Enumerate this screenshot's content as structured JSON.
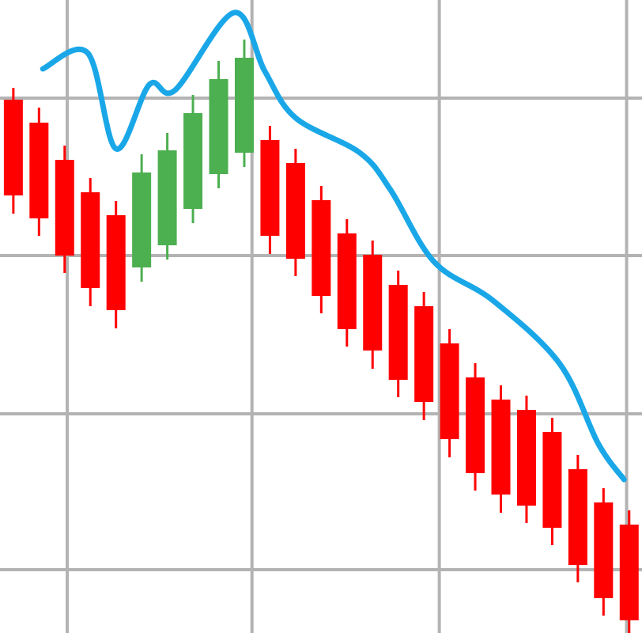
{
  "chart_data": {
    "type": "candlestick",
    "title": "",
    "xlabel": "",
    "ylabel": "",
    "grid": true,
    "legend": "none",
    "xlim": [
      0,
      25
    ],
    "ylim": [
      0,
      800
    ],
    "colors": {
      "up": "#4caf50",
      "down": "#ff0000",
      "line": "#1aa7e8",
      "grid": "#b3b3b3",
      "background": "#ffffff"
    },
    "x_gridlines": [
      2.6,
      9.8,
      17.1,
      24.4
    ],
    "y_gridlines": [
      676,
      477,
      277,
      80
    ],
    "candles": [
      {
        "x": 0.5,
        "open": 674,
        "close": 553,
        "high": 689,
        "low": 530,
        "direction": "down"
      },
      {
        "x": 1.5,
        "open": 645,
        "close": 524,
        "high": 664,
        "low": 502,
        "direction": "down"
      },
      {
        "x": 2.5,
        "open": 598,
        "close": 477,
        "high": 616,
        "low": 455,
        "direction": "down"
      },
      {
        "x": 3.5,
        "open": 557,
        "close": 436,
        "high": 575,
        "low": 413,
        "direction": "down"
      },
      {
        "x": 4.5,
        "open": 528,
        "close": 408,
        "high": 546,
        "low": 385,
        "direction": "down"
      },
      {
        "x": 5.5,
        "open": 462,
        "close": 582,
        "high": 605,
        "low": 444,
        "direction": "up"
      },
      {
        "x": 6.5,
        "open": 490,
        "close": 610,
        "high": 632,
        "low": 472,
        "direction": "up"
      },
      {
        "x": 7.5,
        "open": 536,
        "close": 657,
        "high": 680,
        "low": 518,
        "direction": "up"
      },
      {
        "x": 8.5,
        "open": 580,
        "close": 700,
        "high": 723,
        "low": 562,
        "direction": "up"
      },
      {
        "x": 9.5,
        "open": 607,
        "close": 727,
        "high": 750,
        "low": 589,
        "direction": "up"
      },
      {
        "x": 10.5,
        "open": 623,
        "close": 502,
        "high": 641,
        "low": 479,
        "direction": "down"
      },
      {
        "x": 11.5,
        "open": 594,
        "close": 473,
        "high": 612,
        "low": 451,
        "direction": "down"
      },
      {
        "x": 12.5,
        "open": 547,
        "close": 426,
        "high": 565,
        "low": 404,
        "direction": "down"
      },
      {
        "x": 13.5,
        "open": 505,
        "close": 384,
        "high": 523,
        "low": 362,
        "direction": "down"
      },
      {
        "x": 14.5,
        "open": 478,
        "close": 357,
        "high": 496,
        "low": 334,
        "direction": "down"
      },
      {
        "x": 15.5,
        "open": 440,
        "close": 320,
        "high": 458,
        "low": 298,
        "direction": "down"
      },
      {
        "x": 16.5,
        "open": 413,
        "close": 292,
        "high": 431,
        "low": 269,
        "direction": "down"
      },
      {
        "x": 17.5,
        "open": 366,
        "close": 245,
        "high": 384,
        "low": 222,
        "direction": "down"
      },
      {
        "x": 18.5,
        "open": 323,
        "close": 202,
        "high": 341,
        "low": 180,
        "direction": "down"
      },
      {
        "x": 19.5,
        "open": 295,
        "close": 175,
        "high": 313,
        "low": 152,
        "direction": "down"
      },
      {
        "x": 20.5,
        "open": 282,
        "close": 161,
        "high": 300,
        "low": 139,
        "direction": "down"
      },
      {
        "x": 21.5,
        "open": 254,
        "close": 133,
        "high": 272,
        "low": 111,
        "direction": "down"
      },
      {
        "x": 22.5,
        "open": 207,
        "close": 86,
        "high": 225,
        "low": 64,
        "direction": "down"
      },
      {
        "x": 23.5,
        "open": 165,
        "close": 44,
        "high": 183,
        "low": 22,
        "direction": "down"
      },
      {
        "x": 24.5,
        "open": 137,
        "close": 16,
        "high": 155,
        "low": 0,
        "direction": "down"
      }
    ],
    "line": {
      "x": [
        1.65,
        3.4,
        4.5,
        5.8,
        6.8,
        9.1,
        10.3,
        11.5,
        14.0,
        15.2,
        16.9,
        19.2,
        21.8,
        23.3,
        24.3
      ],
      "y": [
        713,
        733,
        612,
        693,
        686,
        784,
        710,
        651,
        607,
        560,
        469,
        420,
        340,
        239,
        194
      ]
    }
  }
}
